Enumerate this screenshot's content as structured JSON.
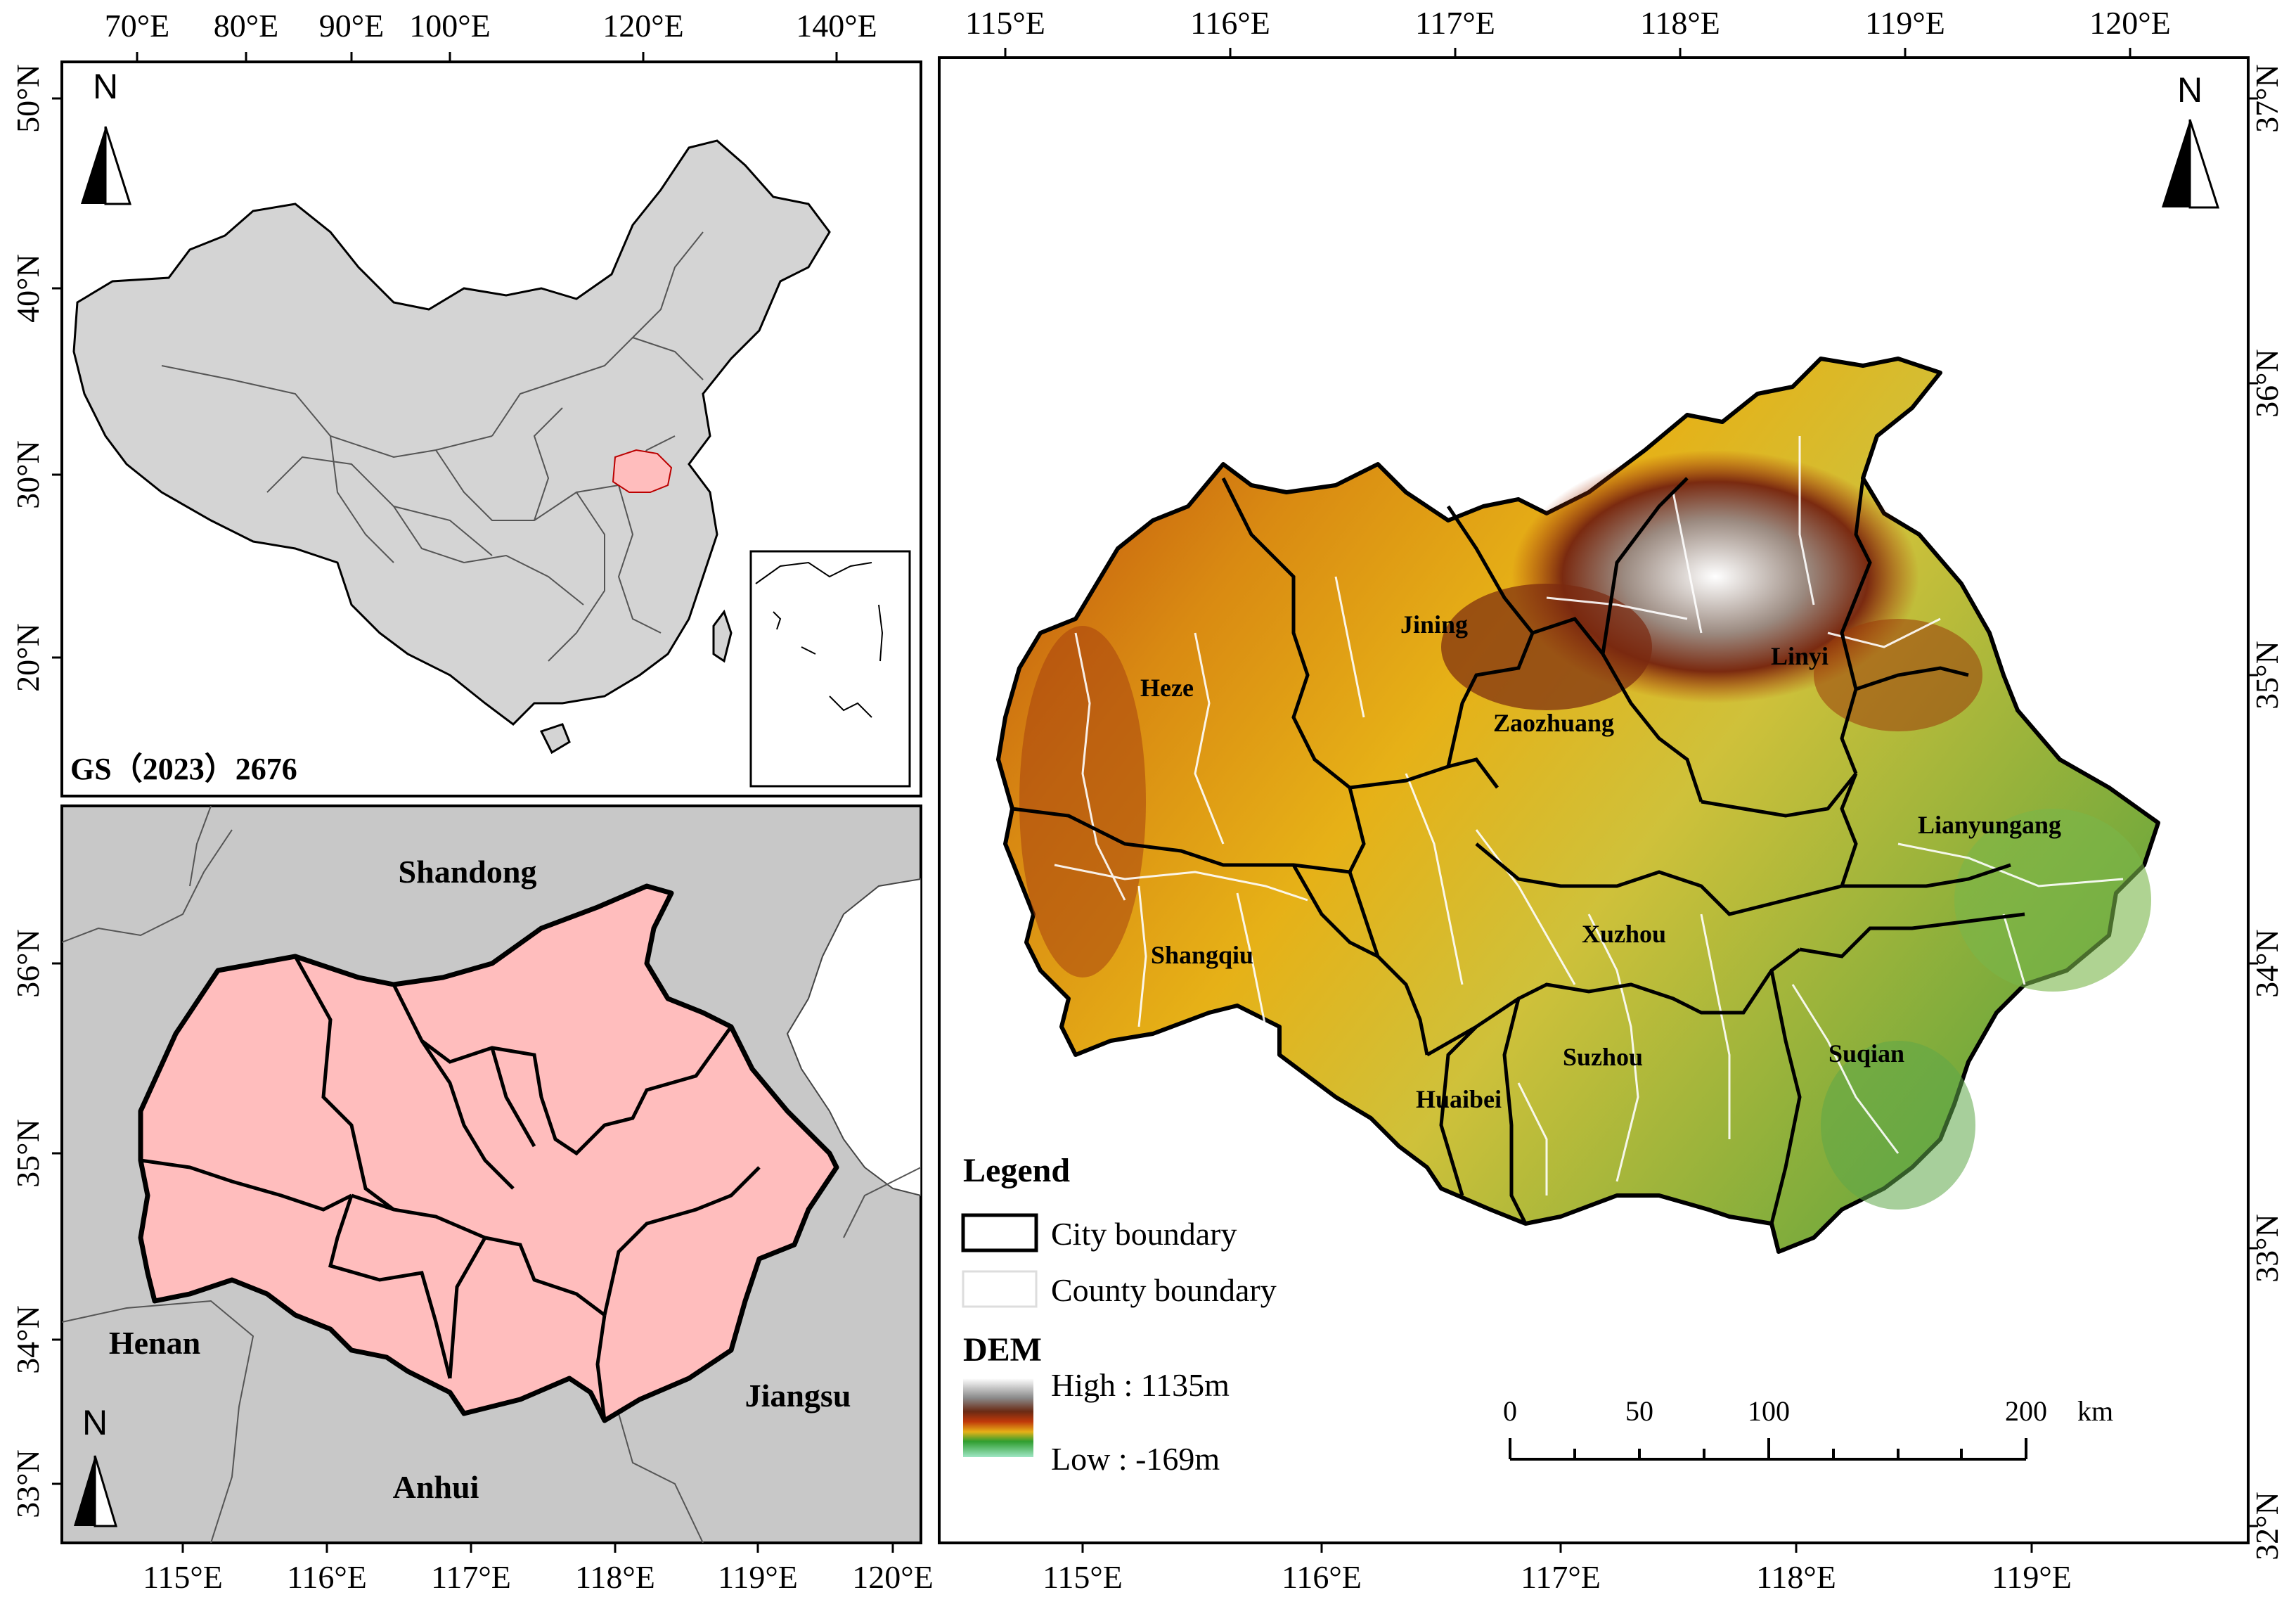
{
  "overview_map": {
    "top_ticks": [
      "70°E",
      "80°E",
      "90°E",
      "100°E",
      "120°E",
      "140°E"
    ],
    "left_ticks": [
      "50°N",
      "40°N",
      "30°N",
      "20°N"
    ],
    "north_label": "N",
    "approval_number": "GS（2023）2676"
  },
  "regional_map": {
    "bottom_ticks": [
      "115°E",
      "116°E",
      "117°E",
      "118°E",
      "119°E",
      "120°E"
    ],
    "left_ticks": [
      "36°N",
      "35°N",
      "34°N",
      "33°N"
    ],
    "provinces": [
      "Shandong",
      "Henan",
      "Anhui",
      "Jiangsu"
    ],
    "north_label": "N"
  },
  "dem_map": {
    "top_ticks": [
      "115°E",
      "116°E",
      "117°E",
      "118°E",
      "119°E",
      "120°E"
    ],
    "bottom_ticks": [
      "115°E",
      "116°E",
      "117°E",
      "118°E",
      "119°E"
    ],
    "right_ticks": [
      "37°N",
      "36°N",
      "35°N",
      "34°N",
      "33°N",
      "32°N"
    ],
    "north_label": "N",
    "cities": [
      "Jining",
      "Linyi",
      "Heze",
      "Zaozhuang",
      "Lianyungang",
      "Shangqiu",
      "Xuzhou",
      "Suzhou",
      "Suqian",
      "Huaibei"
    ],
    "legend": {
      "title": "Legend",
      "city_boundary": "City boundary",
      "county_boundary": "County boundary",
      "dem_title": "DEM",
      "high": "High : 1135m",
      "low": "Low : -169m"
    },
    "scale_bar": {
      "labels": [
        "0",
        "50",
        "100",
        "200"
      ],
      "unit": "km"
    }
  },
  "colors": {
    "land_gray": "#d4d4d4",
    "study_area_pink": "#ffbdbd",
    "dem_low": "#8fd3a3",
    "dem_mid": "#e6b117",
    "dem_high": "#7a1c05"
  }
}
